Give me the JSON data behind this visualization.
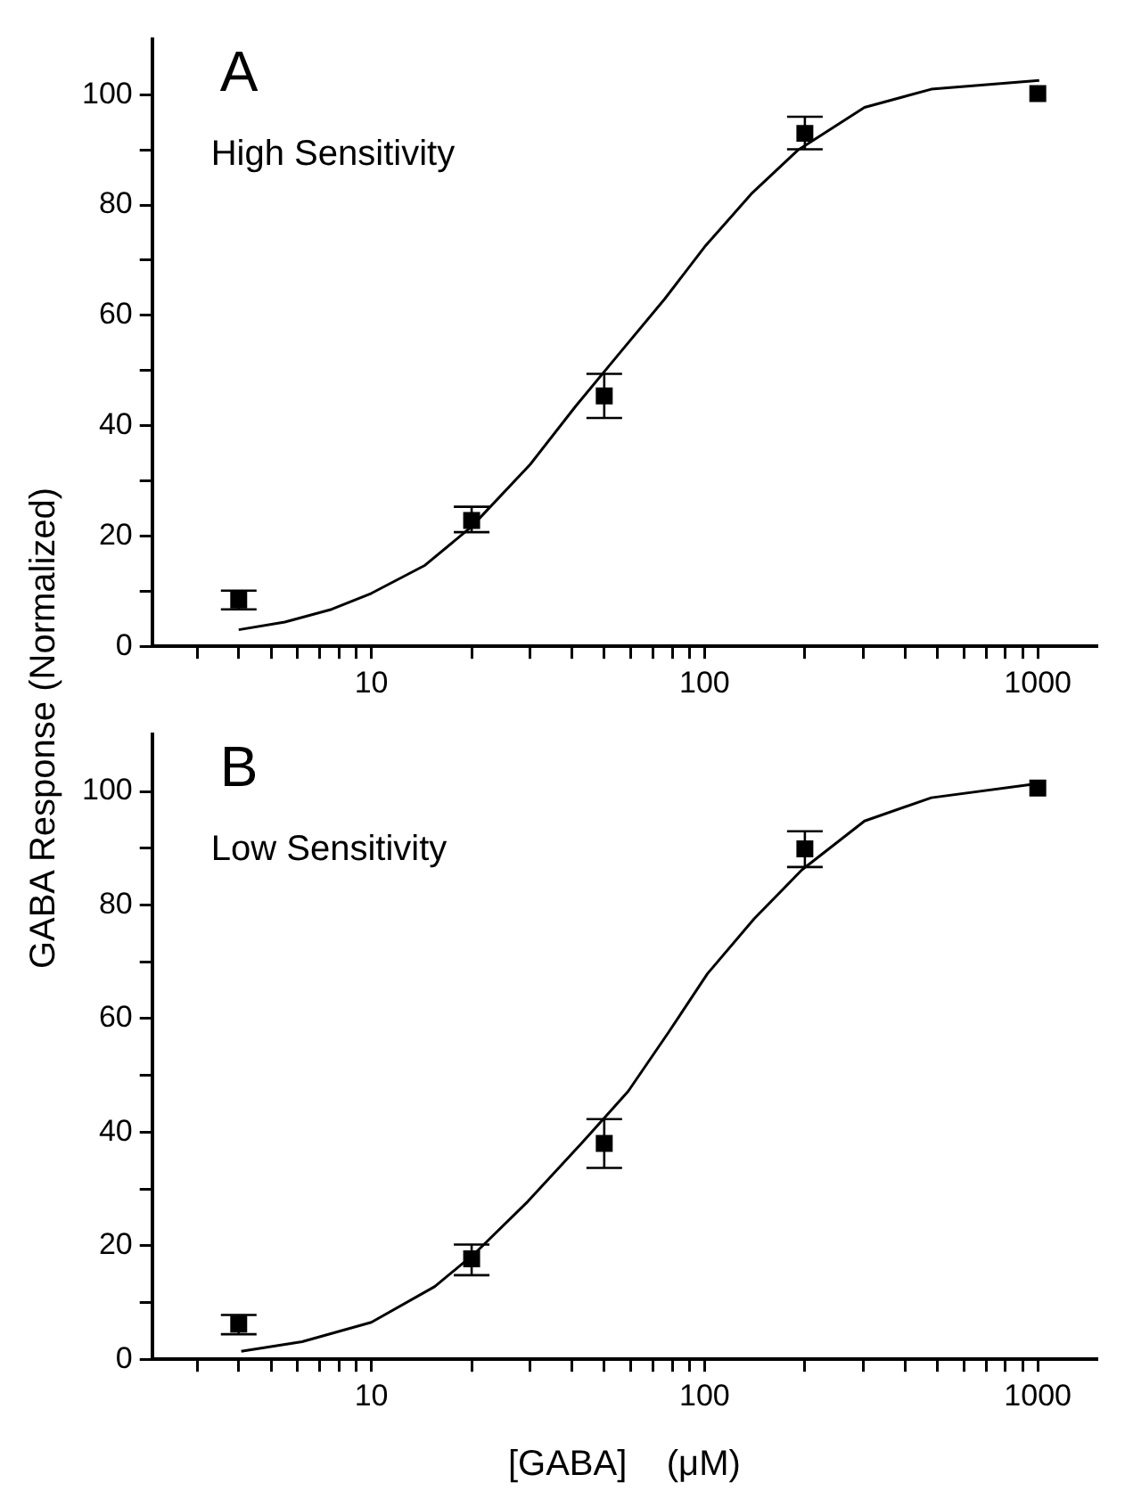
{
  "chart_data": [
    {
      "type": "scatter",
      "annotations": [
        "A",
        "High Sensitivity"
      ],
      "ylabel": "GABA Response (Normalized)",
      "log": "x",
      "grid": false,
      "legend": false,
      "xlim": [
        2.2,
        1500
      ],
      "xticks": [
        {
          "value": 3,
          "label": null
        },
        {
          "value": 4,
          "label": null
        },
        {
          "value": 5,
          "label": null
        },
        {
          "value": 6,
          "label": null
        },
        {
          "value": 7,
          "label": null
        },
        {
          "value": 8,
          "label": null
        },
        {
          "value": 9,
          "label": null
        },
        10,
        {
          "value": 20,
          "label": null
        },
        {
          "value": 30,
          "label": null
        },
        {
          "value": 40,
          "label": null
        },
        {
          "value": 50,
          "label": null
        },
        {
          "value": 60,
          "label": null
        },
        {
          "value": 70,
          "label": null
        },
        {
          "value": 80,
          "label": null
        },
        {
          "value": 90,
          "label": null
        },
        100,
        {
          "value": 200,
          "label": null
        },
        {
          "value": 300,
          "label": null
        },
        {
          "value": 400,
          "label": null
        },
        {
          "value": 500,
          "label": null
        },
        {
          "value": 600,
          "label": null
        },
        {
          "value": 700,
          "label": null
        },
        {
          "value": 800,
          "label": null
        },
        {
          "value": 900,
          "label": null
        },
        1000
      ],
      "ylim": [
        0,
        110
      ],
      "yticks": [
        0,
        {
          "value": 10,
          "label": null
        },
        20,
        {
          "value": 30,
          "label": null
        },
        40,
        {
          "value": 50,
          "label": null
        },
        60,
        {
          "value": 70,
          "label": null
        },
        80,
        {
          "value": 90,
          "label": null
        },
        100
      ],
      "series": [
        {
          "marker": "square",
          "color": "#000000",
          "x": [
            4,
            20,
            50,
            200,
            1000
          ],
          "values": [
            8.4,
            22.8,
            45.4,
            93,
            100.2
          ],
          "errors": [
            1.7,
            [
              20.7,
              25.3
            ],
            [
              41.4,
              49.4
            ],
            [
              90.1,
              96
            ],
            null
          ]
        },
        {
          "type": "line",
          "marker": "none",
          "line_style": "solid",
          "color": "#000000",
          "x": [
            4.0,
            5.5,
            7.6,
            10,
            14.5,
            20,
            30,
            41,
            55,
            76,
            100,
            138,
            191,
            302,
            479,
            1010
          ],
          "values": [
            3.0,
            4.4,
            6.7,
            9.6,
            14.7,
            21.7,
            33,
            43.5,
            52.8,
            63,
            72.4,
            82,
            90,
            97.7,
            101,
            102.6
          ]
        }
      ]
    },
    {
      "type": "scatter",
      "annotations": [
        "B",
        "Low Sensitivity"
      ],
      "xlabel": "[GABA]    (μM)",
      "log": "x",
      "grid": false,
      "legend": false,
      "xlim": [
        2.2,
        1500
      ],
      "xticks": [
        {
          "value": 3,
          "label": null
        },
        {
          "value": 4,
          "label": null
        },
        {
          "value": 5,
          "label": null
        },
        {
          "value": 6,
          "label": null
        },
        {
          "value": 7,
          "label": null
        },
        {
          "value": 8,
          "label": null
        },
        {
          "value": 9,
          "label": null
        },
        10,
        {
          "value": 20,
          "label": null
        },
        {
          "value": 30,
          "label": null
        },
        {
          "value": 40,
          "label": null
        },
        {
          "value": 50,
          "label": null
        },
        {
          "value": 60,
          "label": null
        },
        {
          "value": 70,
          "label": null
        },
        {
          "value": 80,
          "label": null
        },
        {
          "value": 90,
          "label": null
        },
        100,
        {
          "value": 200,
          "label": null
        },
        {
          "value": 300,
          "label": null
        },
        {
          "value": 400,
          "label": null
        },
        {
          "value": 500,
          "label": null
        },
        {
          "value": 600,
          "label": null
        },
        {
          "value": 700,
          "label": null
        },
        {
          "value": 800,
          "label": null
        },
        {
          "value": 900,
          "label": null
        },
        1000
      ],
      "ylim": [
        0,
        110
      ],
      "yticks": [
        0,
        {
          "value": 10,
          "label": null
        },
        20,
        {
          "value": 30,
          "label": null
        },
        40,
        {
          "value": 50,
          "label": null
        },
        60,
        {
          "value": 70,
          "label": null
        },
        80,
        {
          "value": 90,
          "label": null
        },
        100
      ],
      "series": [
        {
          "marker": "square",
          "color": "#000000",
          "x": [
            4,
            20,
            50,
            200,
            1000
          ],
          "values": [
            6.2,
            17.7,
            38,
            89.9,
            100.6
          ],
          "errors": [
            [
              4.4,
              7.8
            ],
            [
              14.8,
              20.2
            ],
            [
              33.7,
              42.3
            ],
            [
              86.7,
              93
            ],
            null
          ]
        },
        {
          "type": "line",
          "marker": "none",
          "line_style": "solid",
          "color": "#000000",
          "x": [
            4.07,
            6.2,
            10,
            15.5,
            20.4,
            29.5,
            42.7,
            59,
            78,
            102,
            141,
            196,
            302,
            479,
            1000
          ],
          "values": [
            1.4,
            3.1,
            6.5,
            12.8,
            18.6,
            27.8,
            38,
            47.2,
            57.6,
            67.9,
            77.6,
            86.2,
            94.8,
            98.9,
            101.4
          ]
        }
      ]
    }
  ]
}
